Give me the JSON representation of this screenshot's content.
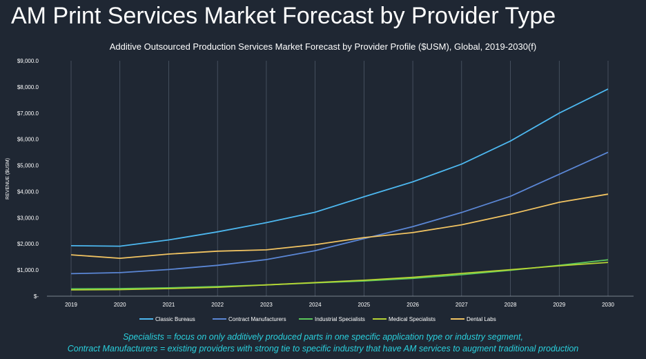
{
  "slide": {
    "title": "AM Print Services Market Forecast by Provider Type"
  },
  "footnote": {
    "line1": "Specialists = focus on only additively produced parts in one specific application type or industry segment,",
    "line2": "Contract Manufacturers = existing providers with strong tie to specific industry that have AM services to augment traditional production"
  },
  "chart_data": {
    "type": "line",
    "title": "Additive Outsourced Production Services Market Forecast by Provider Profile ($USM), Global, 2019-2030(f)",
    "xlabel": "",
    "ylabel": "REVENUE ($USM)",
    "ylim": [
      0,
      9000
    ],
    "yticks": [
      0,
      1000,
      2000,
      3000,
      4000,
      5000,
      6000,
      7000,
      8000,
      9000
    ],
    "ytick_labels": [
      "$-",
      "$1,000.0",
      "$2,000.0",
      "$3,000.0",
      "$4,000.0",
      "$5,000.0",
      "$6,000.0",
      "$7,000.0",
      "$8,000.0",
      "$9,000.0"
    ],
    "categories": [
      "2019",
      "2020",
      "2021",
      "2022",
      "2023",
      "2024",
      "2025",
      "2026",
      "2027",
      "2028",
      "2029",
      "2030"
    ],
    "grid": "vertical",
    "legend": "bottom",
    "series": [
      {
        "name": "Classic Bureaus",
        "color": "#4db8f0",
        "values": [
          1930,
          1910,
          2150,
          2460,
          2810,
          3210,
          3800,
          4370,
          5050,
          5930,
          7000,
          7920
        ]
      },
      {
        "name": "Contract Manufacturers",
        "color": "#5b87d6",
        "values": [
          860,
          900,
          1020,
          1180,
          1400,
          1740,
          2200,
          2660,
          3200,
          3820,
          4660,
          5500
        ]
      },
      {
        "name": "Industrial Specialists",
        "color": "#5bc85b",
        "values": [
          280,
          290,
          320,
          370,
          430,
          510,
          580,
          680,
          820,
          990,
          1180,
          1390
        ]
      },
      {
        "name": "Medical Specialists",
        "color": "#b6d434",
        "values": [
          240,
          250,
          290,
          340,
          430,
          520,
          610,
          720,
          870,
          1010,
          1160,
          1290
        ]
      },
      {
        "name": "Dental Labs",
        "color": "#f2c462",
        "values": [
          1580,
          1450,
          1610,
          1720,
          1770,
          1970,
          2240,
          2430,
          2730,
          3130,
          3590,
          3900
        ]
      }
    ]
  }
}
